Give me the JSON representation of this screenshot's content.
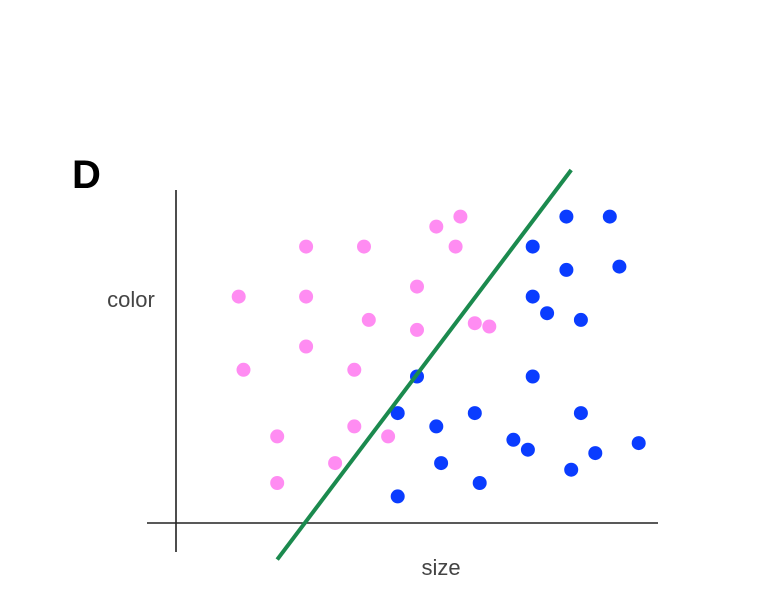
{
  "chart_data": {
    "type": "scatter",
    "panel_label": "D",
    "title": "",
    "xlabel": "size",
    "ylabel": "color",
    "xlim": [
      0,
      10
    ],
    "ylim": [
      0,
      10
    ],
    "grid": false,
    "ticks": false,
    "legend": "none",
    "series": [
      {
        "color": "#ff8cf2",
        "points": [
          [
            1.3,
            6.8
          ],
          [
            2.7,
            8.3
          ],
          [
            3.9,
            8.3
          ],
          [
            5.4,
            8.9
          ],
          [
            5.9,
            9.2
          ],
          [
            5.8,
            8.3
          ],
          [
            2.7,
            6.8
          ],
          [
            5.0,
            7.1
          ],
          [
            4.0,
            6.1
          ],
          [
            5.0,
            5.8
          ],
          [
            6.2,
            6.0
          ],
          [
            6.5,
            5.9
          ],
          [
            2.7,
            5.3
          ],
          [
            1.4,
            4.6
          ],
          [
            3.7,
            4.6
          ],
          [
            2.1,
            2.6
          ],
          [
            3.7,
            2.9
          ],
          [
            4.4,
            2.6
          ],
          [
            3.3,
            1.8
          ],
          [
            2.1,
            1.2
          ]
        ]
      },
      {
        "color": "#0a3cff",
        "points": [
          [
            8.1,
            9.2
          ],
          [
            9.0,
            9.2
          ],
          [
            7.4,
            8.3
          ],
          [
            8.1,
            7.6
          ],
          [
            9.2,
            7.7
          ],
          [
            7.4,
            6.8
          ],
          [
            7.7,
            6.3
          ],
          [
            8.4,
            6.1
          ],
          [
            5.0,
            4.4
          ],
          [
            7.4,
            4.4
          ],
          [
            4.6,
            3.3
          ],
          [
            5.4,
            2.9
          ],
          [
            6.2,
            3.3
          ],
          [
            8.4,
            3.3
          ],
          [
            7.0,
            2.5
          ],
          [
            7.3,
            2.2
          ],
          [
            8.7,
            2.1
          ],
          [
            9.6,
            2.4
          ],
          [
            5.5,
            1.8
          ],
          [
            8.2,
            1.6
          ],
          [
            6.3,
            1.2
          ],
          [
            4.6,
            0.8
          ]
        ]
      }
    ],
    "boundary": {
      "color": "#1b8a4e",
      "points": [
        [
          2.1,
          -1.1
        ],
        [
          8.2,
          10.6
        ]
      ]
    }
  }
}
